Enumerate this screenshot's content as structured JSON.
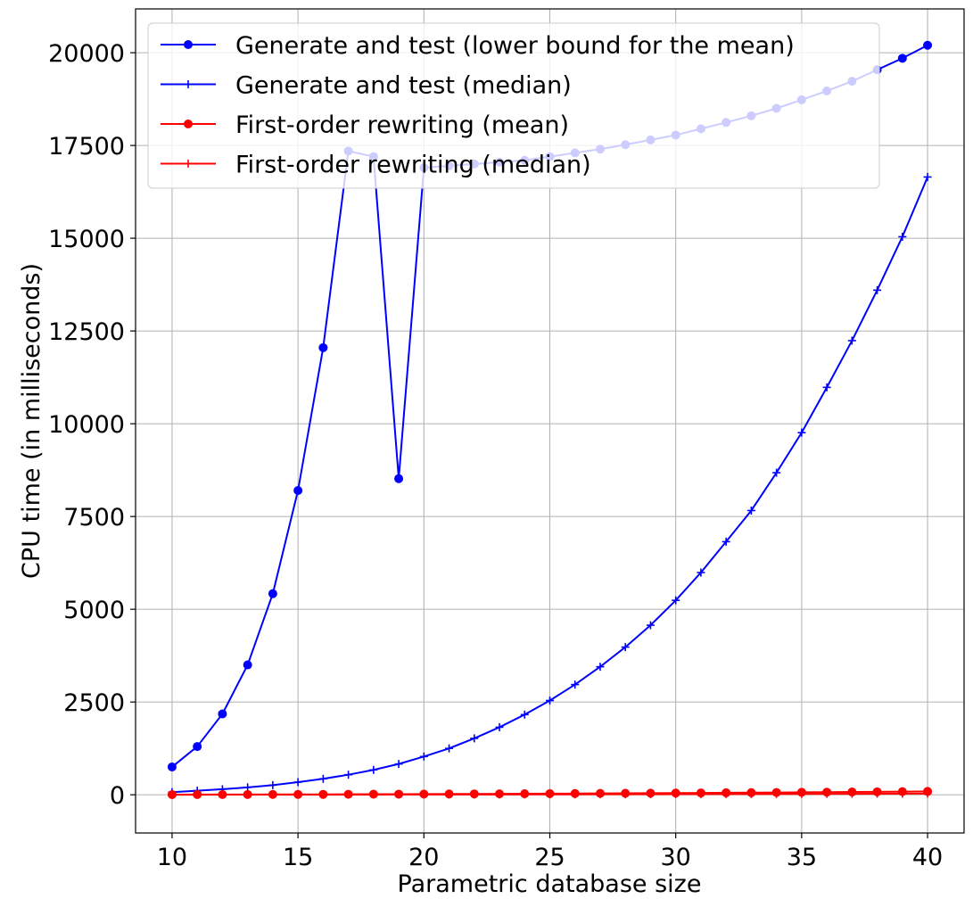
{
  "chart_data": {
    "type": "line",
    "xlabel": "Parametric database size",
    "ylabel": "CPU time (in milliseconds)",
    "xlim": [
      8.55,
      41.45
    ],
    "ylim": [
      -1030,
      21180
    ],
    "xticks": [
      "10",
      "15",
      "20",
      "25",
      "30",
      "35",
      "40"
    ],
    "yticks": [
      "0",
      "2500",
      "5000",
      "7500",
      "10000",
      "12500",
      "15000",
      "17500",
      "20000"
    ],
    "grid": true,
    "legend_position": "top-left",
    "x": [
      10,
      11,
      12,
      13,
      14,
      15,
      16,
      17,
      18,
      19,
      20,
      21,
      22,
      23,
      24,
      25,
      26,
      27,
      28,
      29,
      30,
      31,
      32,
      33,
      34,
      35,
      36,
      37,
      38,
      39,
      40
    ],
    "series": [
      {
        "name": "Generate and test (lower bound for the mean)",
        "color": "#0000ff",
        "marker": "circle",
        "values": [
          750,
          1300,
          2180,
          3500,
          5420,
          8200,
          12050,
          17350,
          17200,
          8520,
          16900,
          16950,
          17000,
          17050,
          17100,
          17200,
          17300,
          17400,
          17520,
          17650,
          17780,
          17950,
          18120,
          18300,
          18500,
          18730,
          18970,
          19230,
          19540,
          19850,
          20200
        ]
      },
      {
        "name": "Generate and test (median)",
        "color": "#0000ff",
        "marker": "plus",
        "values": [
          70,
          110,
          150,
          200,
          260,
          340,
          430,
          540,
          670,
          830,
          1030,
          1250,
          1520,
          1820,
          2160,
          2540,
          2970,
          3450,
          3980,
          4570,
          5240,
          5990,
          6820,
          7660,
          8680,
          9760,
          10980,
          12240,
          13600,
          15040,
          16650
        ]
      },
      {
        "name": "First-order rewriting (mean)",
        "color": "#ff0000",
        "marker": "circle",
        "values": [
          5,
          6,
          7,
          8,
          9,
          10,
          11,
          13,
          15,
          17,
          19,
          21,
          23,
          25,
          27,
          30,
          33,
          36,
          39,
          42,
          46,
          50,
          54,
          58,
          62,
          66,
          70,
          75,
          80,
          85,
          90
        ]
      },
      {
        "name": "First-order rewriting (median)",
        "color": "#ff0000",
        "marker": "plus",
        "values": [
          2,
          2,
          3,
          3,
          3,
          4,
          4,
          5,
          5,
          6,
          6,
          7,
          7,
          8,
          9,
          10,
          11,
          12,
          13,
          14,
          15,
          16,
          18,
          19,
          21,
          22,
          24,
          26,
          28,
          30,
          32
        ]
      }
    ]
  }
}
